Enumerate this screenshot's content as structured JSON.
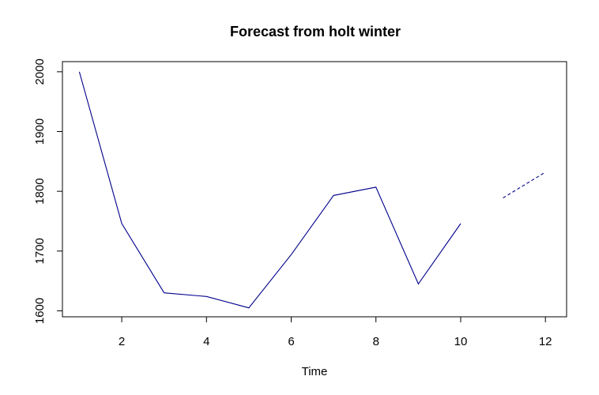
{
  "chart_data": {
    "type": "line",
    "title": "Forecast from holt winter",
    "xlabel": "Time",
    "ylabel": "",
    "xlim": [
      0.6,
      12.5
    ],
    "ylim": [
      1590,
      2017
    ],
    "x_ticks": [
      2,
      4,
      6,
      8,
      10,
      12
    ],
    "y_ticks": [
      1600,
      1700,
      1800,
      1900,
      2000
    ],
    "grid": false,
    "legend": "none",
    "colors": {
      "line": "#00008b",
      "axis": "#000000"
    },
    "series": [
      {
        "style": "solid",
        "x": [
          1,
          2,
          3,
          4,
          5,
          6,
          7,
          8,
          9,
          10
        ],
        "values": [
          2000,
          1746,
          1630,
          1624,
          1605,
          1694,
          1793,
          1807,
          1645,
          1746
        ]
      },
      {
        "style": "dashed",
        "x": [
          11,
          12
        ],
        "values": [
          1789,
          1832
        ]
      }
    ]
  }
}
